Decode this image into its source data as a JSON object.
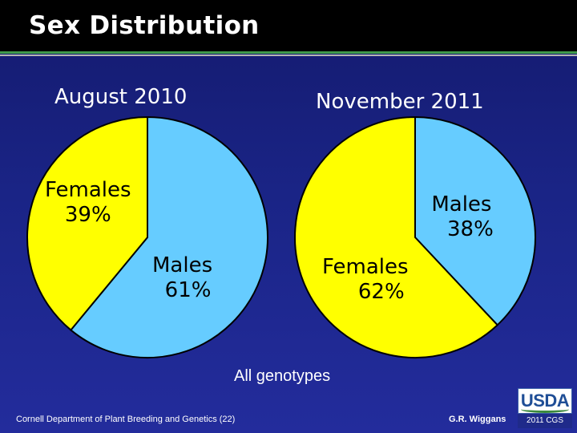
{
  "page": {
    "title": "Sex Distribution"
  },
  "chart_data": [
    {
      "type": "pie",
      "title": "August 2010",
      "categories": [
        "Males",
        "Females"
      ],
      "values": [
        61,
        39
      ],
      "labels": [
        "61%",
        "39%"
      ],
      "colors": [
        "#66ccff",
        "#ffff00"
      ]
    },
    {
      "type": "pie",
      "title": "November 2011",
      "categories": [
        "Males",
        "Females"
      ],
      "values": [
        38,
        62
      ],
      "labels": [
        "38%",
        "62%"
      ],
      "colors": [
        "#66ccff",
        "#ffff00"
      ]
    }
  ],
  "footnote": "All genotypes",
  "footer": {
    "left": "Cornell Department of Plant Breeding and Genetics (22)",
    "right": "G.R. Wiggans"
  },
  "logo": {
    "name": "USDA",
    "year": "2011",
    "mark": "CGS"
  }
}
